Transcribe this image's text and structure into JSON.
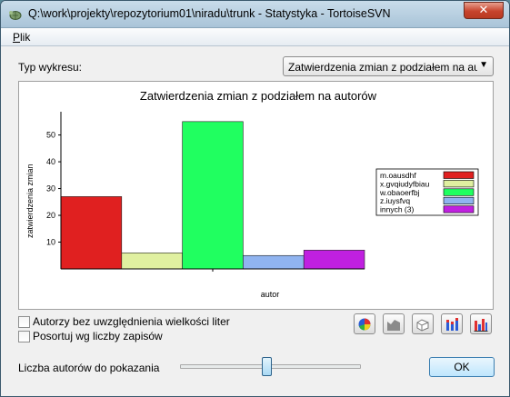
{
  "window": {
    "title": "Q:\\work\\projekty\\repozytorium01\\niradu\\trunk - Statystyka - TortoiseSVN",
    "close_label": "✕"
  },
  "menu": {
    "plik_underlined": "P",
    "plik_rest": "lik"
  },
  "chart_type": {
    "label": "Typ wykresu:",
    "selected": "Zatwierdzenia zmian z podziałem na autorów"
  },
  "chart_data": {
    "type": "bar",
    "title": "Zatwierdzenia zmian z podziałem na autorów",
    "xlabel": "autor",
    "ylabel": "zatwierdzenia zmian",
    "ylim": [
      0,
      58
    ],
    "yticks": [
      10,
      20,
      30,
      40,
      50
    ],
    "grid": false,
    "legend_position": "right",
    "categories": [
      "m.oausdhf",
      "x.gvqiudyfbiau",
      "w.obaoerfbj",
      "z.iuysfvq",
      "innych (3)"
    ],
    "values": [
      27,
      6,
      55,
      5,
      7
    ],
    "colors": [
      "#e02020",
      "#e0f0a0",
      "#20ff60",
      "#90b4f0",
      "#c020e0"
    ]
  },
  "options": {
    "case_insensitive": "Autorzy bez uwzględnienia wielkości liter",
    "sort_by_count": "Posortuj wg liczby zapisów"
  },
  "toolbar": {
    "icons": [
      "pie-chart-icon",
      "area-chart-icon",
      "3d-area-chart-icon",
      "stacked-bar-icon",
      "bar-chart-icon"
    ]
  },
  "slider": {
    "label": "Liczba autorów do pokazania",
    "level": 0.48
  },
  "ok_label": "OK"
}
